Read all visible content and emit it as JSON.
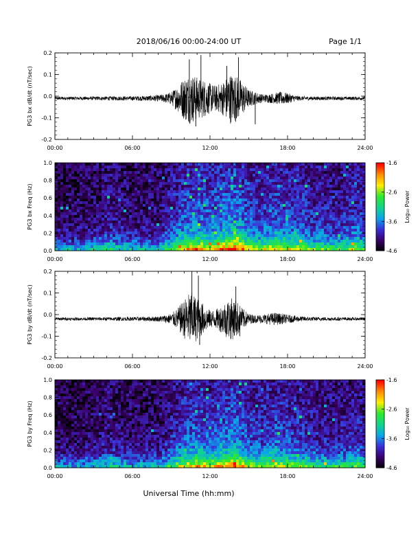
{
  "header": {
    "title": "2018/06/16  00:00-24:00 UT",
    "page": "Page 1/1"
  },
  "footer": {
    "xlabel": "Universal Time (hh:mm)"
  },
  "colorbar": {
    "label": "Log₁₀ Power",
    "ticks": [
      "-1.6",
      "-2.6",
      "-3.6",
      "-4.6"
    ],
    "range": [
      -4.6,
      -1.6
    ],
    "colors": [
      "#000000",
      "#3a0066",
      "#3b2ed6",
      "#0aa6e8",
      "#12d48c",
      "#2ee82e",
      "#ffee00",
      "#ff8c00",
      "#ff0000"
    ]
  },
  "chart_data": [
    {
      "type": "line",
      "panel": "bx-waveform",
      "ylabel": "PG3 bx dB/dt (nT/sec)",
      "xticks": [
        "00:00",
        "06:00",
        "12:00",
        "18:00",
        "24:00"
      ],
      "yticks": [
        "0.2",
        "0.1",
        "0.0",
        "-0.1",
        "-0.2"
      ],
      "xlim": [
        0,
        24
      ],
      "ylim": [
        -0.2,
        0.2
      ],
      "baseline": -0.01,
      "envelope": {
        "x": [
          0,
          2,
          4,
          6,
          7,
          8,
          8.5,
          9,
          9.5,
          10,
          10.5,
          11,
          11.5,
          12,
          12.5,
          13,
          13.5,
          14,
          14.5,
          15,
          15.5,
          16,
          16.5,
          17,
          17.5,
          18,
          18.5,
          19,
          20,
          22,
          24
        ],
        "amplitude": [
          0.008,
          0.008,
          0.009,
          0.01,
          0.012,
          0.015,
          0.02,
          0.03,
          0.06,
          0.1,
          0.12,
          0.1,
          0.09,
          0.07,
          0.06,
          0.08,
          0.12,
          0.11,
          0.08,
          0.04,
          0.03,
          0.02,
          0.02,
          0.025,
          0.03,
          0.025,
          0.015,
          0.01,
          0.009,
          0.008,
          0.008
        ]
      },
      "peaks": [
        {
          "x": 11.3,
          "y": 0.19
        },
        {
          "x": 10.4,
          "y": 0.17
        },
        {
          "x": 14.2,
          "y": 0.18
        },
        {
          "x": 13.3,
          "y": 0.14
        },
        {
          "x": 15.5,
          "y": -0.13
        },
        {
          "x": 10.9,
          "y": -0.14
        }
      ]
    },
    {
      "type": "heatmap",
      "panel": "bx-spectrogram",
      "ylabel": "PG3 bx Freq (Hz)",
      "xticks": [
        "00:00",
        "06:00",
        "12:00",
        "18:00",
        "24:00"
      ],
      "yticks": [
        "1.0",
        "0.8",
        "0.6",
        "0.4",
        "0.2",
        "0.0"
      ],
      "xlim": [
        0,
        24
      ],
      "ylim": [
        0,
        1.0
      ],
      "zlim": [
        -4.6,
        -1.6
      ],
      "activity": {
        "x": [
          0,
          2,
          3.5,
          4,
          6,
          8,
          9,
          10,
          11,
          12,
          13,
          14,
          15,
          16,
          17,
          18,
          19,
          20,
          22,
          23.5,
          24
        ],
        "level": [
          0.05,
          0.08,
          0.15,
          0.25,
          0.12,
          0.15,
          0.35,
          0.55,
          0.65,
          0.55,
          0.65,
          0.75,
          0.5,
          0.45,
          0.55,
          0.5,
          0.45,
          0.35,
          0.3,
          0.45,
          0.3
        ]
      }
    },
    {
      "type": "line",
      "panel": "by-waveform",
      "ylabel": "PG3 by dB/dt (nT/sec)",
      "xticks": [
        "00:00",
        "06:00",
        "12:00",
        "18:00",
        "24:00"
      ],
      "yticks": [
        "0.2",
        "0.1",
        "0.0",
        "-0.1",
        "-0.2"
      ],
      "xlim": [
        0,
        24
      ],
      "ylim": [
        -0.2,
        0.2
      ],
      "baseline": -0.02,
      "envelope": {
        "x": [
          0,
          2,
          4,
          6,
          7,
          8,
          8.5,
          9,
          9.5,
          10,
          10.5,
          11,
          11.5,
          12,
          12.5,
          13,
          13.5,
          14,
          14.5,
          15,
          15.5,
          16,
          16.5,
          17,
          17.5,
          18,
          19,
          20,
          22,
          24
        ],
        "amplitude": [
          0.007,
          0.007,
          0.008,
          0.009,
          0.01,
          0.012,
          0.018,
          0.025,
          0.05,
          0.09,
          0.13,
          0.1,
          0.07,
          0.04,
          0.045,
          0.07,
          0.1,
          0.09,
          0.05,
          0.025,
          0.018,
          0.02,
          0.025,
          0.03,
          0.025,
          0.02,
          0.012,
          0.009,
          0.008,
          0.007
        ]
      },
      "peaks": [
        {
          "x": 10.6,
          "y": 0.2
        },
        {
          "x": 11.1,
          "y": 0.18
        },
        {
          "x": 14.0,
          "y": 0.13
        },
        {
          "x": 11.2,
          "y": -0.14
        },
        {
          "x": 14.3,
          "y": -0.1
        }
      ]
    },
    {
      "type": "heatmap",
      "panel": "by-spectrogram",
      "ylabel": "PG3 by Freq (Hz)",
      "xticks": [
        "00:00",
        "06:00",
        "12:00",
        "18:00",
        "24:00"
      ],
      "yticks": [
        "1.0",
        "0.8",
        "0.6",
        "0.4",
        "0.2",
        "0.0"
      ],
      "xlim": [
        0,
        24
      ],
      "ylim": [
        0,
        1.0
      ],
      "zlim": [
        -4.6,
        -1.6
      ],
      "activity": {
        "x": [
          0,
          2,
          3.5,
          4,
          6,
          8,
          9,
          10,
          11,
          12,
          13,
          14,
          15,
          16,
          17,
          18,
          19,
          20,
          22,
          23.5,
          24
        ],
        "level": [
          0.05,
          0.06,
          0.12,
          0.2,
          0.1,
          0.12,
          0.3,
          0.5,
          0.6,
          0.5,
          0.6,
          0.7,
          0.45,
          0.4,
          0.5,
          0.45,
          0.4,
          0.3,
          0.25,
          0.35,
          0.25
        ]
      }
    }
  ]
}
